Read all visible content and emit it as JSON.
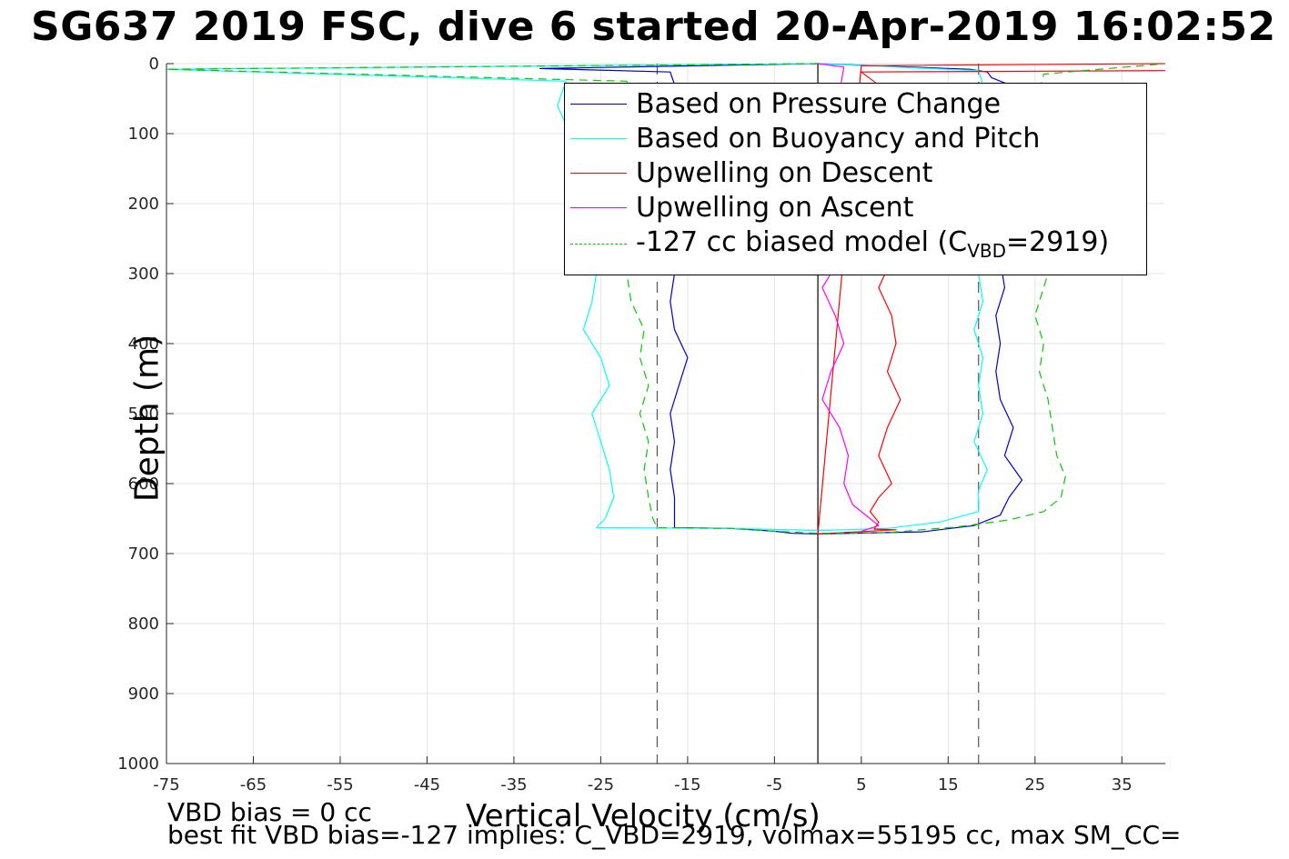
{
  "title": "SG637 2019 FSC, dive 6 started 20-Apr-2019 16:02:52",
  "notes": {
    "line1": "VBD bias = 0 cc",
    "line2": "best fit VBD bias=-127 implies: C_VBD=2919, volmax=55195 cc, max SM_CC="
  },
  "legend": {
    "items": [
      {
        "label": "Based on Pressure Change",
        "color": "#0000cc",
        "style": "solid"
      },
      {
        "label": "Based on Buoyancy and Pitch",
        "color": "#00ffff",
        "style": "solid"
      },
      {
        "label": "Upwelling on Descent",
        "color": "#ff0000",
        "style": "solid"
      },
      {
        "label": "Upwelling on Ascent",
        "color": "#ff00ff",
        "style": "solid"
      },
      {
        "label": "-127 cc biased model (C",
        "sub": "VBD",
        "suffix": "=2919)",
        "color": "#00cc00",
        "style": "dashed"
      }
    ]
  },
  "chart_data": {
    "type": "line",
    "xlabel": "Vertical Velocity (cm/s)",
    "ylabel": "Depth (m)",
    "xlim": [
      -75,
      40
    ],
    "ylim": [
      0,
      1000
    ],
    "y_reversed": true,
    "xticks": [
      -75,
      -65,
      -55,
      -45,
      -35,
      -25,
      -15,
      -5,
      5,
      15,
      25,
      35
    ],
    "yticks": [
      0,
      100,
      200,
      300,
      400,
      500,
      600,
      700,
      800,
      900,
      1000
    ],
    "grid": true,
    "legend_position": "top-right",
    "reference_lines": [
      {
        "x": -18.5,
        "style": "dashed",
        "color": "#555555"
      },
      {
        "x": 18.5,
        "style": "dashed",
        "color": "#555555"
      },
      {
        "x": 0,
        "style": "solid",
        "color": "#000000"
      }
    ],
    "series": [
      {
        "name": "Based on Pressure Change",
        "color": "#0000cc",
        "x": [
          0,
          -32,
          -17,
          -16.5,
          -17,
          -16,
          -17.5,
          -16,
          -17,
          -15.5,
          -16.5,
          -17,
          -16.5,
          -15,
          -16,
          -17,
          -16.5,
          -17,
          -16.5,
          -16.5,
          -10,
          -5,
          -3,
          0,
          12,
          18,
          21,
          22,
          23.5,
          21.5,
          22.5,
          21,
          20.5,
          21,
          20.5,
          21.5,
          21,
          22,
          20.5,
          21.5,
          20,
          19.5,
          21,
          22,
          20,
          19.5,
          17.5,
          0
        ],
        "y": [
          0,
          7,
          12,
          30,
          60,
          100,
          140,
          180,
          220,
          260,
          300,
          340,
          380,
          420,
          460,
          500,
          540,
          580,
          620,
          663,
          664,
          668,
          671,
          672,
          669,
          660,
          645,
          620,
          595,
          560,
          520,
          480,
          440,
          400,
          360,
          320,
          280,
          240,
          200,
          160,
          120,
          80,
          50,
          30,
          20,
          12,
          8,
          0
        ]
      },
      {
        "name": "Based on Buoyancy and Pitch",
        "color": "#00ffff",
        "x": [
          0,
          -75,
          -29,
          -30,
          -28.5,
          -29,
          -27.5,
          -28,
          -26.5,
          -25.5,
          -26,
          -27,
          -25,
          -24,
          -26,
          -25,
          -24,
          -23.5,
          -24.5,
          -25.5,
          -10,
          -3,
          0,
          8,
          14,
          18.5,
          18.5,
          19.5,
          18,
          19,
          18.5,
          19,
          18,
          19,
          18.5,
          19,
          18,
          19,
          18.5,
          19,
          18.5,
          19,
          18.5,
          0
        ],
        "y": [
          0,
          8,
          25,
          60,
          100,
          140,
          180,
          220,
          260,
          300,
          340,
          380,
          420,
          460,
          500,
          540,
          580,
          620,
          650,
          663,
          664,
          666,
          667,
          664,
          655,
          640,
          610,
          580,
          540,
          500,
          460,
          420,
          380,
          340,
          300,
          260,
          220,
          180,
          140,
          100,
          60,
          30,
          10,
          0
        ]
      },
      {
        "name": "Upwelling on Descent",
        "color": "#ff0000",
        "x": [
          40,
          5,
          8,
          9,
          8,
          9.5,
          8,
          9,
          8.5,
          7,
          8.5,
          9,
          8,
          9.5,
          8,
          7,
          8.5,
          7,
          6,
          7,
          6.5,
          9,
          0,
          5,
          40
        ],
        "y": [
          10,
          12,
          40,
          80,
          120,
          160,
          200,
          240,
          280,
          320,
          360,
          400,
          440,
          480,
          520,
          560,
          600,
          620,
          640,
          655,
          665,
          666,
          672,
          3,
          0
        ]
      },
      {
        "name": "Upwelling on Ascent",
        "color": "#ff00ff",
        "x": [
          0,
          3,
          2.5,
          3,
          2,
          3,
          2,
          3.5,
          2.5,
          0.5,
          2,
          3,
          1.5,
          0.5,
          2.5,
          3.5,
          3,
          4,
          6,
          7,
          5
        ],
        "y": [
          0,
          5,
          40,
          80,
          120,
          160,
          200,
          240,
          280,
          320,
          360,
          400,
          440,
          480,
          520,
          560,
          600,
          630,
          650,
          660,
          668
        ]
      },
      {
        "name": "-127 cc biased model (CVBD=2919)",
        "color": "#00cc00",
        "style": "dashed",
        "x": [
          0,
          -75,
          -22,
          -21,
          -22.5,
          -21,
          -22,
          -21,
          -20.5,
          -22,
          -21.5,
          -20,
          -20.5,
          -19.5,
          -20.5,
          -19.5,
          -20,
          -19.5,
          -19,
          -18.5,
          -10,
          -5,
          0,
          8,
          16,
          22,
          26,
          28,
          28.5,
          27.5,
          27,
          26.5,
          25.5,
          26,
          25,
          26,
          27,
          26,
          25,
          26,
          25,
          26,
          25.5,
          26,
          40
        ],
        "y": [
          0,
          8,
          25,
          60,
          100,
          140,
          180,
          220,
          260,
          300,
          340,
          380,
          420,
          460,
          500,
          540,
          580,
          620,
          650,
          663,
          664,
          668,
          671,
          670,
          662,
          652,
          640,
          620,
          590,
          560,
          520,
          480,
          440,
          400,
          360,
          320,
          280,
          240,
          200,
          160,
          120,
          80,
          40,
          15,
          0
        ]
      }
    ]
  }
}
